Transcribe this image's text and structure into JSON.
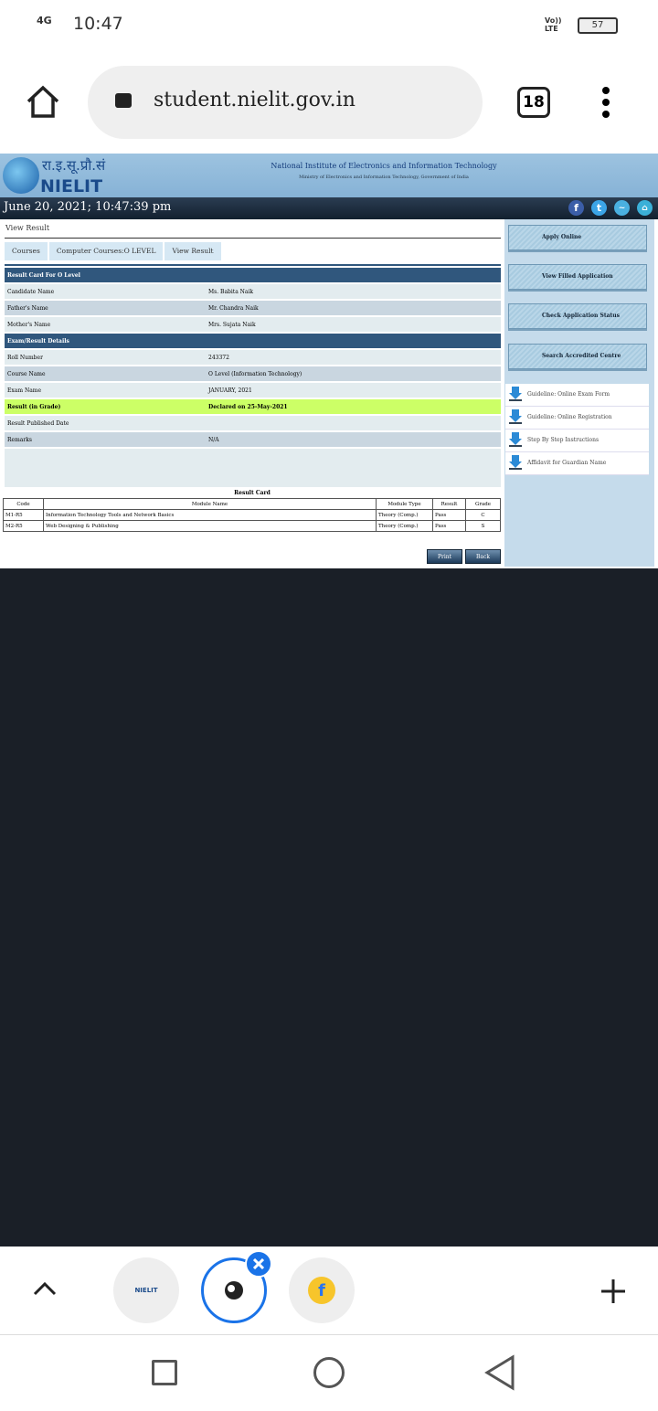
{
  "status_bar": {
    "network": "4G",
    "time": "10:47",
    "volte": "Vo)) LTE",
    "battery": "57"
  },
  "browser": {
    "url": "student.nielit.gov.in",
    "tab_count": "18"
  },
  "site": {
    "logo_hindi": "रा.इ.सू.प्रौ.सं",
    "logo_text": "NIELIT",
    "title": "National Institute of Electronics and Information Technology",
    "subtitle": "Ministry of Electronics and Information Technology, Government of India",
    "datetime": "June 20, 2021; 10:47:39 pm"
  },
  "page": {
    "heading": "View Result",
    "breadcrumb": [
      "Courses",
      "Computer Courses:O LEVEL",
      "View Result"
    ]
  },
  "result_card": {
    "title": "Result Card For O Level",
    "personal": [
      {
        "k": "Candidate Name",
        "v": "Ms. Babita Naik"
      },
      {
        "k": "Father's Name",
        "v": "Mr. Chandra Naik"
      },
      {
        "k": "Mother's Name",
        "v": "Mrs. Sujata Naik"
      }
    ],
    "exam_title": "Exam/Result Details",
    "exam": [
      {
        "k": "Roll Number",
        "v": "243372"
      },
      {
        "k": "Course Name",
        "v": "O Level (Information Technology)"
      },
      {
        "k": "Exam Name",
        "v": "JANUARY, 2021"
      },
      {
        "k": "Result (in Grade)",
        "v": "Declared on 25-May-2021"
      },
      {
        "k": "Result Published Date",
        "v": ""
      },
      {
        "k": "Remarks",
        "v": "N/A"
      }
    ]
  },
  "modules": {
    "caption": "Result Card",
    "headers": [
      "Code",
      "Module Name",
      "Module Type",
      "Result",
      "Grade"
    ],
    "rows": [
      [
        "M1-R5",
        "Information Technology Tools and Network Basics",
        "Theory (Comp.)",
        "Pass",
        "C"
      ],
      [
        "M2-R5",
        "Web Designing & Publishing",
        "Theory (Comp.)",
        "Pass",
        "S"
      ]
    ]
  },
  "actions": {
    "print": "Print",
    "back": "Back"
  },
  "sidebar": {
    "buttons": [
      "Apply Online",
      "View Filled Application",
      "Check Application Status",
      "Search Accredited Centre"
    ],
    "downloads": [
      "Guideline: Online Exam Form",
      "Guideline: Online Registration",
      "Step By Step Instructions",
      "Affidavit for Guardian Name"
    ]
  },
  "tabs": {
    "tab1_label": "NIELIT"
  }
}
